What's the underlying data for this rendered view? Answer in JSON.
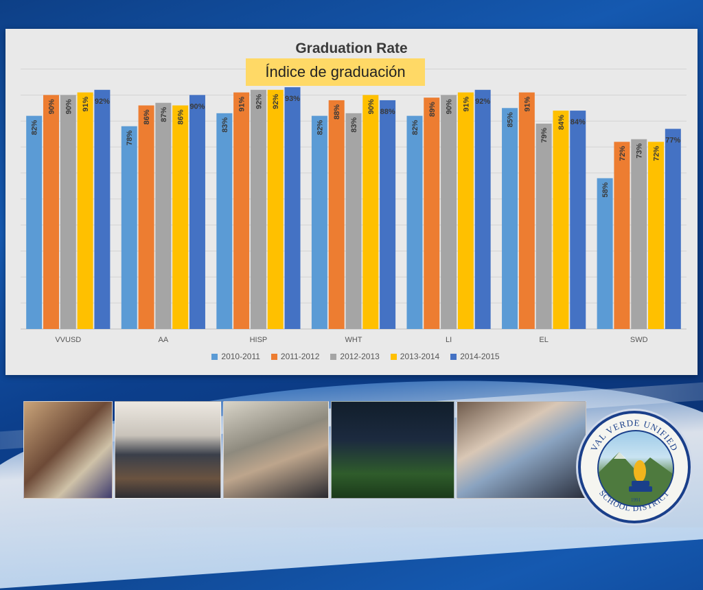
{
  "chart_data": {
    "type": "bar",
    "title": "Graduation Rate",
    "subtitle": "Índice de graduación",
    "categories": [
      "VVUSD",
      "AA",
      "HISP",
      "WHT",
      "LI",
      "EL",
      "SWD"
    ],
    "series": [
      {
        "name": "2010-2011",
        "color": "#5b9bd5",
        "values": [
          82,
          78,
          83,
          82,
          82,
          85,
          58
        ]
      },
      {
        "name": "2011-2012",
        "color": "#ed7d31",
        "values": [
          90,
          86,
          91,
          88,
          89,
          91,
          72
        ]
      },
      {
        "name": "2012-2013",
        "color": "#a5a5a5",
        "values": [
          90,
          87,
          92,
          83,
          90,
          79,
          73
        ]
      },
      {
        "name": "2013-2014",
        "color": "#ffc000",
        "values": [
          91,
          86,
          92,
          90,
          91,
          84,
          72
        ]
      },
      {
        "name": "2014-2015",
        "color": "#4472c4",
        "values": [
          92,
          90,
          93,
          88,
          92,
          84,
          77
        ]
      }
    ],
    "value_suffix": "%",
    "ylim": [
      0,
      93
    ],
    "grid": true,
    "legend_position": "bottom"
  },
  "logo": {
    "top_text": "VAL VERDE UNIFIED",
    "bottom_text": "SCHOOL DISTRICT",
    "year": "1991"
  },
  "photos": [
    "students-with-poster-photo",
    "computer-lab-photo",
    "classroom-visit-photo",
    "football-players-photo",
    "teacher-with-students-photo"
  ]
}
